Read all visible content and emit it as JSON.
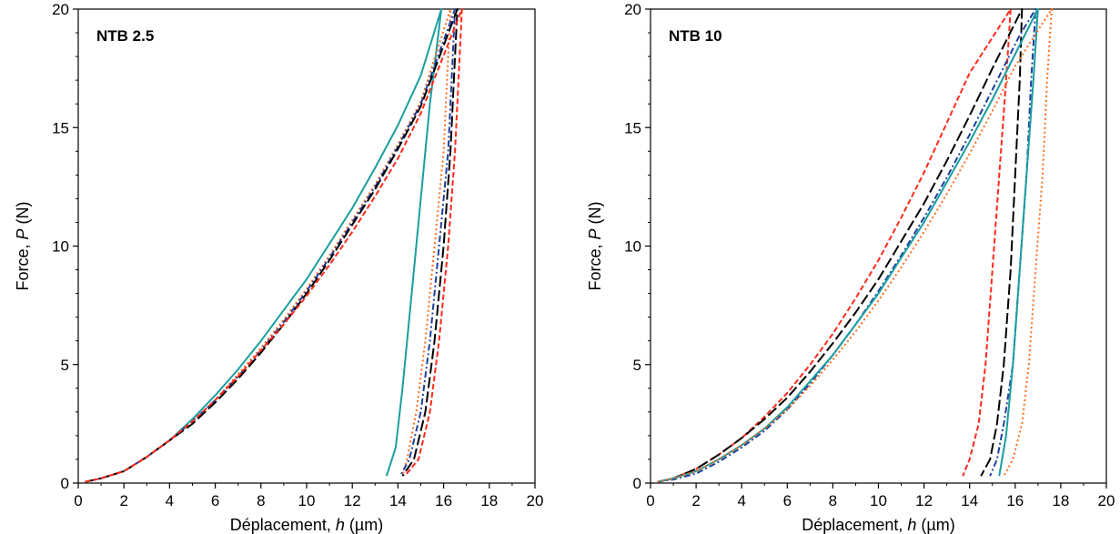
{
  "chart_data": [
    {
      "type": "line",
      "title": "NTB 2.5",
      "xlabel_prefix": "Déplacement, ",
      "xlabel_var": "h",
      "xlabel_unit": " (µm)",
      "ylabel_prefix": "Force, ",
      "ylabel_var": "P",
      "ylabel_unit": " (N)",
      "xlim": [
        0,
        20
      ],
      "ylim": [
        0,
        20
      ],
      "xticks": [
        0,
        2,
        4,
        6,
        8,
        10,
        12,
        14,
        16,
        18,
        20
      ],
      "yticks": [
        0,
        5,
        10,
        15,
        20
      ],
      "grid": false,
      "series": [
        {
          "color": "#1a9e9e",
          "style": "solid",
          "x": [
            0.3,
            1,
            2,
            3,
            4,
            5,
            6,
            7,
            8,
            9,
            10,
            11,
            12,
            13,
            14,
            15,
            15.9,
            15.4,
            15.0,
            14.6,
            14.2,
            13.9,
            13.5
          ],
          "y": [
            0.05,
            0.2,
            0.5,
            1.1,
            1.8,
            2.7,
            3.7,
            4.8,
            6.0,
            7.3,
            8.6,
            10.1,
            11.6,
            13.3,
            15.1,
            17.2,
            20.0,
            16.0,
            12.0,
            8.0,
            4.0,
            1.5,
            0.3
          ]
        },
        {
          "color": "#ff6a1a",
          "style": "dotted",
          "x": [
            0.3,
            1,
            2,
            3,
            4,
            5,
            6,
            7,
            8,
            9,
            10,
            11,
            12,
            13,
            14,
            15,
            16.3,
            16.2,
            16.0,
            15.6,
            15.2,
            14.8,
            14.4,
            14.2
          ],
          "y": [
            0.05,
            0.2,
            0.5,
            1.1,
            1.8,
            2.6,
            3.5,
            4.6,
            5.7,
            6.9,
            8.2,
            9.6,
            11.1,
            12.6,
            14.3,
            16.1,
            20.0,
            18.0,
            14.0,
            10.0,
            6.0,
            3.0,
            1.0,
            0.3
          ]
        },
        {
          "color": "#1f3f9e",
          "style": "dashdot",
          "x": [
            0.3,
            1,
            2,
            3,
            4,
            5,
            6,
            7,
            8,
            9,
            10,
            11,
            12,
            13,
            14,
            15,
            16.5,
            16.4,
            16.2,
            15.8,
            15.4,
            15.0,
            14.5,
            14.1
          ],
          "y": [
            0.05,
            0.2,
            0.5,
            1.1,
            1.8,
            2.6,
            3.5,
            4.5,
            5.6,
            6.8,
            8.1,
            9.5,
            11.0,
            12.5,
            14.2,
            16.0,
            20.0,
            18.0,
            14.0,
            10.0,
            6.0,
            3.0,
            1.0,
            0.3
          ]
        },
        {
          "color": "#000000",
          "style": "longdash",
          "x": [
            0.3,
            1,
            2,
            3,
            4,
            5,
            6,
            7,
            8,
            9,
            10,
            11,
            12,
            13,
            14,
            15,
            16.6,
            16.5,
            16.3,
            16.0,
            15.6,
            15.2,
            14.7,
            14.2
          ],
          "y": [
            0.05,
            0.2,
            0.5,
            1.1,
            1.8,
            2.5,
            3.4,
            4.4,
            5.5,
            6.7,
            8.0,
            9.4,
            10.9,
            12.4,
            14.1,
            15.9,
            20.0,
            18.0,
            14.0,
            10.0,
            6.0,
            3.0,
            1.0,
            0.3
          ]
        },
        {
          "color": "#ff2a1a",
          "style": "dashed",
          "x": [
            0.3,
            1,
            2,
            3,
            4,
            5,
            6,
            7,
            8,
            9,
            10,
            11,
            12,
            13,
            14,
            15,
            16.8,
            16.7,
            16.5,
            16.2,
            15.8,
            15.4,
            14.9,
            14.3
          ],
          "y": [
            0.05,
            0.2,
            0.5,
            1.1,
            1.8,
            2.6,
            3.5,
            4.5,
            5.6,
            6.7,
            7.9,
            9.2,
            10.6,
            12.1,
            13.7,
            15.6,
            20.0,
            18.0,
            14.0,
            10.0,
            6.0,
            3.0,
            1.0,
            0.3
          ]
        }
      ]
    },
    {
      "type": "line",
      "title": "NTB 10",
      "xlabel_prefix": "Déplacement, ",
      "xlabel_var": "h",
      "xlabel_unit": " (µm)",
      "ylabel_prefix": "Force, ",
      "ylabel_var": "P",
      "ylabel_unit": " (N)",
      "xlim": [
        0,
        20
      ],
      "ylim": [
        0,
        20
      ],
      "xticks": [
        0,
        2,
        4,
        6,
        8,
        10,
        12,
        14,
        16,
        18,
        20
      ],
      "yticks": [
        0,
        5,
        10,
        15,
        20
      ],
      "grid": false,
      "series": [
        {
          "color": "#ff2a1a",
          "style": "dashed",
          "x": [
            0.3,
            1,
            2,
            3,
            4,
            5,
            6,
            7,
            8,
            9,
            10,
            11,
            12,
            13,
            14,
            15.8,
            15.6,
            15.3,
            15.0,
            14.7,
            14.4,
            14.0,
            13.7
          ],
          "y": [
            0.05,
            0.2,
            0.6,
            1.2,
            1.9,
            2.8,
            3.8,
            5.0,
            6.3,
            7.8,
            9.4,
            11.2,
            13.1,
            15.2,
            17.3,
            20.0,
            17.0,
            13.0,
            9.0,
            5.0,
            2.5,
            1.0,
            0.3
          ]
        },
        {
          "color": "#000000",
          "style": "longdash",
          "x": [
            0.3,
            1,
            2,
            3,
            4,
            5,
            6,
            7,
            8,
            9,
            10,
            11,
            12,
            13,
            14,
            15,
            16.3,
            16.2,
            16.0,
            15.8,
            15.5,
            15.2,
            14.9,
            14.5
          ],
          "y": [
            0.05,
            0.2,
            0.6,
            1.2,
            1.9,
            2.7,
            3.6,
            4.7,
            5.9,
            7.2,
            8.6,
            10.2,
            11.8,
            13.6,
            15.5,
            17.5,
            20.0,
            17.0,
            13.0,
            9.0,
            5.0,
            2.5,
            1.0,
            0.3
          ]
        },
        {
          "color": "#1f3f9e",
          "style": "dashdot",
          "x": [
            0.3,
            1,
            2,
            3,
            4,
            5,
            6,
            7,
            8,
            9,
            10,
            11,
            12,
            13,
            14,
            15,
            16.2,
            16.9,
            16.7,
            16.5,
            16.2,
            15.9,
            15.5,
            15.2,
            14.9
          ],
          "y": [
            0.05,
            0.15,
            0.4,
            0.9,
            1.5,
            2.2,
            3.1,
            4.2,
            5.4,
            6.7,
            8.1,
            9.6,
            11.2,
            12.9,
            14.7,
            16.6,
            18.9,
            20.0,
            17.0,
            13.0,
            9.0,
            5.0,
            2.5,
            1.0,
            0.3
          ]
        },
        {
          "color": "#1a9e9e",
          "style": "solid",
          "x": [
            0.3,
            1,
            2,
            3,
            4,
            5,
            6,
            7,
            8,
            9,
            10,
            11,
            12,
            13,
            14,
            15,
            16,
            17.0,
            16.8,
            16.5,
            16.2,
            15.9,
            15.6,
            15.3
          ],
          "y": [
            0.05,
            0.2,
            0.5,
            1.0,
            1.6,
            2.3,
            3.2,
            4.3,
            5.4,
            6.7,
            8.0,
            9.5,
            11.0,
            12.7,
            14.4,
            16.2,
            18.1,
            20.0,
            17.0,
            13.0,
            9.0,
            5.0,
            2.0,
            0.3
          ]
        },
        {
          "color": "#ff6a1a",
          "style": "dotted",
          "x": [
            0.3,
            1,
            2,
            3,
            4,
            5,
            6,
            7,
            8,
            9,
            10,
            11,
            12,
            13,
            14,
            15,
            16,
            17.6,
            17.4,
            17.2,
            16.9,
            16.6,
            16.3,
            15.9,
            15.5
          ],
          "y": [
            0.05,
            0.2,
            0.5,
            1.0,
            1.6,
            2.3,
            3.1,
            4.1,
            5.2,
            6.4,
            7.7,
            9.1,
            10.6,
            12.2,
            13.9,
            15.7,
            17.6,
            20.0,
            17.0,
            13.0,
            9.0,
            5.0,
            2.5,
            1.0,
            0.3
          ]
        }
      ]
    }
  ]
}
